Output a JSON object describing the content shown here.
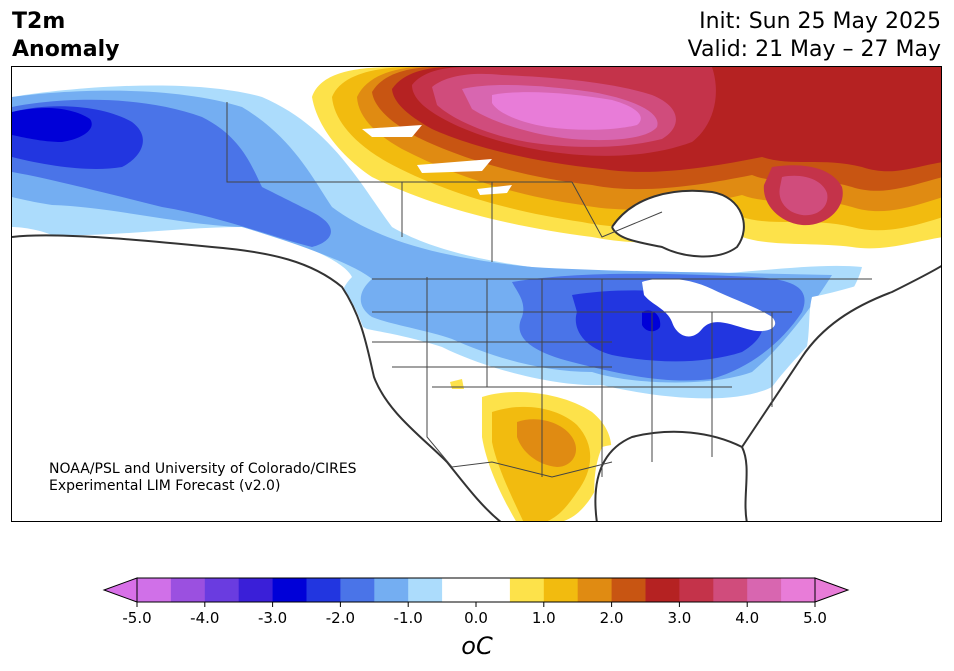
{
  "title": {
    "line1": "T2m",
    "line2": "Anomaly"
  },
  "header": {
    "init": "Init: Sun 25 May 2025",
    "valid": "Valid: 21 May – 27 May"
  },
  "credit": {
    "line1": "NOAA/PSL and University of Colorado/CIRES",
    "line2": "Experimental LIM Forecast (v2.0)"
  },
  "colorbar": {
    "unit": "oC",
    "ticks": [
      "-5.0",
      "-4.0",
      "-3.0",
      "-2.0",
      "-1.0",
      "0.0",
      "1.0",
      "2.0",
      "3.0",
      "4.0",
      "5.0"
    ],
    "colors": [
      "#d070e8",
      "#9b50e0",
      "#6a3ce0",
      "#3a1fd8",
      "#0000d8",
      "#2236e0",
      "#4a74e8",
      "#74aef2",
      "#acdcfc",
      "#ffffff",
      "#ffffff",
      "#fde24a",
      "#f2bb0f",
      "#e08b12",
      "#c85512",
      "#b52222",
      "#c4334a",
      "#d04c7c",
      "#d866b0",
      "#e87cd8"
    ],
    "extend_low_color": "#d870e8",
    "extend_high_color": "#e87cd8"
  },
  "map_colors": {
    "cold_1": "#acdcfc",
    "cold_2": "#74aef2",
    "cold_3": "#4a74e8",
    "cold_4": "#2236e0",
    "cold_5": "#0000d8",
    "warm_1": "#fde24a",
    "warm_2": "#f2bb0f",
    "warm_3": "#e08b12",
    "warm_4": "#c85512",
    "warm_5": "#b52222",
    "warm_6": "#c4334a",
    "warm_7": "#d04c7c",
    "warm_8": "#d866b0",
    "warm_9": "#e87cd8",
    "coast": "#333333",
    "border": "#444444"
  }
}
